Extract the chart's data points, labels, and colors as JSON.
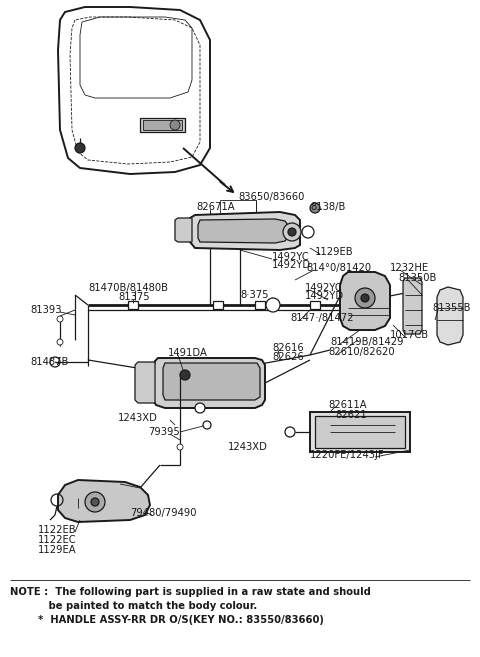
{
  "bg_color": "#ffffff",
  "line_color": "#1a1a1a",
  "fig_width": 4.8,
  "fig_height": 6.57,
  "dpi": 100,
  "note_line1": "NOTE :  The following part is supplied in a raw state and should",
  "note_line2": "           be painted to match the body colour.",
  "note_line3": "        *  HANDLE ASSY-RR DR O/S(KEY NO.: 83550/83660)"
}
